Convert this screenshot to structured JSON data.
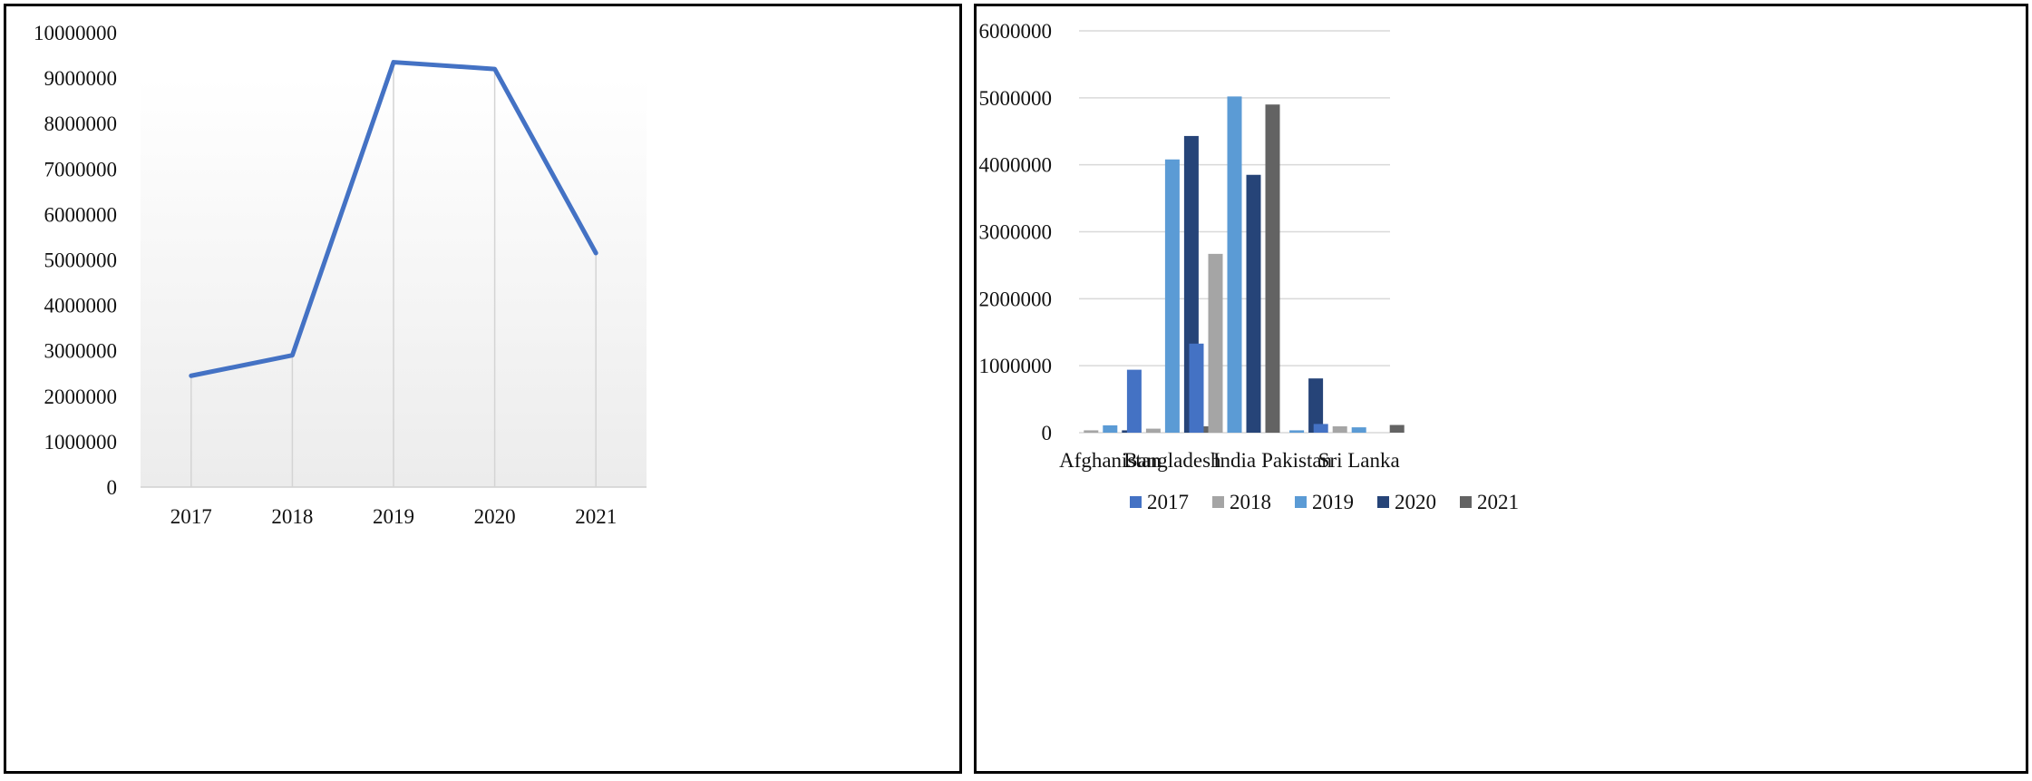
{
  "chart_data": [
    {
      "type": "line",
      "x": [
        "2017",
        "2018",
        "2019",
        "2020",
        "2021"
      ],
      "values": [
        2450000,
        2900000,
        9350000,
        9200000,
        5150000
      ],
      "ylim": [
        0,
        10000000
      ],
      "yticks": [
        "0",
        "1000000",
        "2000000",
        "3000000",
        "4000000",
        "5000000",
        "6000000",
        "7000000",
        "8000000",
        "9000000",
        "10000000"
      ],
      "color": "#4472C4",
      "grid": "vertical"
    },
    {
      "type": "bar",
      "categories": [
        "Afghanistan",
        "Bangladesh",
        "India",
        "Pakistan",
        "Sri Lanka"
      ],
      "series": [
        {
          "name": "2017",
          "color": "#4472C4",
          "values": [
            0,
            940000,
            1330000,
            0,
            130000
          ]
        },
        {
          "name": "2018",
          "color": "#A5A5A5",
          "values": [
            35000,
            60000,
            2670000,
            0,
            95000
          ]
        },
        {
          "name": "2019",
          "color": "#5B9BD5",
          "values": [
            110000,
            4080000,
            5020000,
            35000,
            80000
          ]
        },
        {
          "name": "2020",
          "color": "#264478",
          "values": [
            35000,
            4430000,
            3850000,
            810000,
            0
          ]
        },
        {
          "name": "2021",
          "color": "#636363",
          "values": [
            0,
            95000,
            4900000,
            0,
            115000
          ]
        }
      ],
      "ylim": [
        0,
        6000000
      ],
      "yticks": [
        "0",
        "1000000",
        "2000000",
        "3000000",
        "4000000",
        "5000000",
        "6000000"
      ],
      "grid": "horizontal",
      "legend": "bottom"
    }
  ]
}
